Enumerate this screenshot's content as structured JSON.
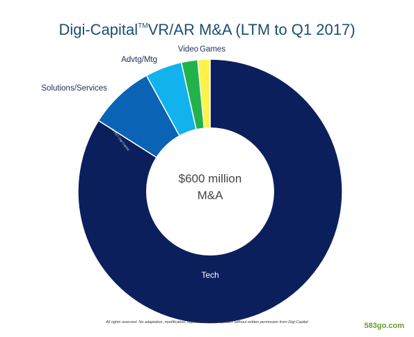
{
  "header": {
    "brand": "Digi-Capital",
    "tm": "TM",
    "subtitle": "VR/AR M&A (LTM to Q1 2017)"
  },
  "chart_data": {
    "type": "pie",
    "style": "donut",
    "categories": [
      "Tech",
      "Solutions/Services",
      "Advtg/Mtg",
      "Video",
      "Games"
    ],
    "values": [
      84,
      8,
      4.5,
      2,
      1.5
    ],
    "unit": "%",
    "colors": [
      "#0b1f5c",
      "#0a63b4",
      "#12b2ef",
      "#22b24c",
      "#fff34a"
    ],
    "legend": "none",
    "center_text": [
      "$600 million",
      "M&A"
    ]
  },
  "chart_note": "© 2017 Digi-Capital",
  "footer": {
    "disclaimer": "All rights reserved. No adaptation, modification, reproduction or compilation without written permission from Digi-Capital",
    "watermark": "583go.com"
  }
}
